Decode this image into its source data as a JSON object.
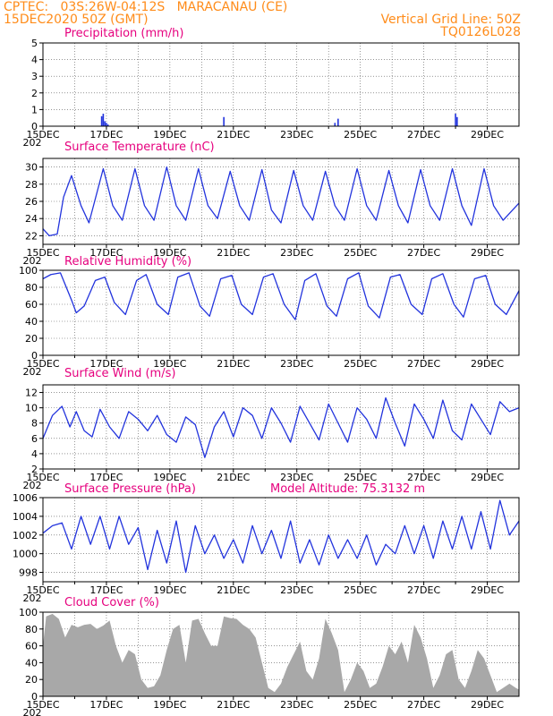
{
  "header": {
    "line1_left": "CPTEC:   03S:26W-04:12S   MARACANAU (CE)",
    "line2_left": "15DEC2020 50Z (GMT)",
    "line1_right": "Vertical Grid Line: 50Z",
    "line2_right": "TQ0126L028"
  },
  "colors": {
    "header": "#ff8c1a",
    "title": "#e6007e",
    "line": "#2233dd",
    "cloud": "#a8a8a8",
    "grid": "#555555"
  },
  "x_axis": {
    "tick_labels": [
      "15DEC",
      "17DEC",
      "19DEC",
      "21DEC",
      "23DEC",
      "25DEC",
      "27DEC",
      "29DEC"
    ],
    "year_fragment": "202"
  },
  "chart_data": [
    {
      "type": "bar",
      "title": "Precipitation (mm/h)",
      "ylim": [
        0,
        5
      ],
      "y_ticks": [
        "0",
        "1",
        "2",
        "3",
        "4",
        "5"
      ],
      "x": [
        1.85,
        1.9,
        1.95,
        2.0,
        2.05,
        5.7,
        9.2,
        9.3,
        13.0,
        13.05
      ],
      "values": [
        0.6,
        0.75,
        0.3,
        0.2,
        0.1,
        0.55,
        0.2,
        0.45,
        0.75,
        0.55
      ]
    },
    {
      "type": "line",
      "title": "Surface Temperature (nC)",
      "ylim": [
        21,
        31
      ],
      "y_ticks": [
        "22",
        "24",
        "26",
        "28",
        "30"
      ],
      "x": [
        0.0,
        0.2,
        0.45,
        0.65,
        0.9,
        1.2,
        1.45,
        1.9,
        2.2,
        2.5,
        2.9,
        3.2,
        3.5,
        3.9,
        4.2,
        4.5,
        4.9,
        5.2,
        5.5,
        5.9,
        6.2,
        6.5,
        6.9,
        7.2,
        7.5,
        7.9,
        8.2,
        8.5,
        8.9,
        9.2,
        9.5,
        9.9,
        10.2,
        10.5,
        10.9,
        11.2,
        11.5,
        11.9,
        12.2,
        12.5,
        12.9,
        13.2,
        13.5,
        13.9,
        14.2,
        14.5,
        15.0
      ],
      "values": [
        22.8,
        22.0,
        22.2,
        26.5,
        29.0,
        25.5,
        23.5,
        29.8,
        25.5,
        23.8,
        29.8,
        25.5,
        23.8,
        30.0,
        25.5,
        23.8,
        29.8,
        25.5,
        24.0,
        29.5,
        25.5,
        23.8,
        29.7,
        25.0,
        23.5,
        29.6,
        25.5,
        23.8,
        29.5,
        25.5,
        23.8,
        29.8,
        25.5,
        23.8,
        29.6,
        25.5,
        23.5,
        29.7,
        25.5,
        23.8,
        29.8,
        25.5,
        23.2,
        29.8,
        25.5,
        23.8,
        25.8
      ]
    },
    {
      "type": "line",
      "title": "Relative Humidity (%)",
      "ylim": [
        0,
        100
      ],
      "y_ticks": [
        "0",
        "20",
        "40",
        "60",
        "80",
        "100"
      ],
      "x": [
        0.0,
        0.25,
        0.55,
        0.9,
        1.05,
        1.3,
        1.65,
        1.95,
        2.25,
        2.6,
        2.95,
        3.25,
        3.6,
        3.95,
        4.25,
        4.6,
        4.95,
        5.25,
        5.6,
        5.95,
        6.25,
        6.6,
        6.95,
        7.25,
        7.6,
        7.95,
        8.25,
        8.6,
        8.95,
        9.25,
        9.6,
        9.95,
        10.25,
        10.6,
        10.95,
        11.25,
        11.6,
        11.95,
        12.25,
        12.6,
        12.95,
        13.25,
        13.6,
        13.95,
        14.25,
        14.6,
        15.0
      ],
      "values": [
        90,
        95,
        97,
        65,
        50,
        58,
        88,
        92,
        62,
        48,
        88,
        95,
        60,
        48,
        92,
        97,
        58,
        46,
        90,
        94,
        60,
        48,
        92,
        96,
        60,
        42,
        88,
        96,
        58,
        46,
        90,
        97,
        58,
        44,
        92,
        95,
        60,
        48,
        90,
        96,
        60,
        45,
        90,
        94,
        60,
        48,
        76
      ]
    },
    {
      "type": "line",
      "title": "Surface Wind (m/s)",
      "ylim": [
        2,
        13
      ],
      "y_ticks": [
        "2",
        "4",
        "6",
        "8",
        "10",
        "12"
      ],
      "x": [
        0.0,
        0.3,
        0.6,
        0.85,
        1.05,
        1.3,
        1.55,
        1.8,
        2.1,
        2.4,
        2.7,
        3.0,
        3.3,
        3.6,
        3.9,
        4.2,
        4.5,
        4.8,
        5.1,
        5.4,
        5.7,
        6.0,
        6.3,
        6.6,
        6.9,
        7.2,
        7.5,
        7.8,
        8.1,
        8.4,
        8.7,
        9.0,
        9.3,
        9.6,
        9.9,
        10.2,
        10.5,
        10.8,
        11.1,
        11.4,
        11.7,
        12.0,
        12.3,
        12.6,
        12.9,
        13.2,
        13.5,
        13.8,
        14.1,
        14.4,
        14.7,
        15.0
      ],
      "values": [
        6.0,
        9.0,
        10.2,
        7.5,
        9.5,
        7.0,
        6.2,
        9.8,
        7.5,
        6.0,
        9.5,
        8.5,
        7.0,
        9.0,
        6.5,
        5.5,
        8.8,
        7.8,
        3.5,
        7.5,
        9.5,
        6.2,
        10.0,
        9.0,
        6.0,
        10.0,
        8.0,
        5.5,
        10.2,
        8.0,
        5.8,
        10.5,
        8.0,
        5.5,
        10.0,
        8.5,
        6.0,
        11.3,
        8.0,
        5.0,
        10.5,
        8.5,
        6.0,
        11.0,
        7.0,
        5.8,
        10.5,
        8.5,
        6.5,
        10.8,
        9.5,
        10.0
      ]
    },
    {
      "type": "line",
      "title": "Surface Pressure (hPa)",
      "annotation": "Model Altitude: 75.3132 m",
      "ylim": [
        997,
        1006
      ],
      "y_ticks": [
        "998",
        "1000",
        "1002",
        "1004",
        "1006"
      ],
      "x": [
        0.0,
        0.3,
        0.6,
        0.9,
        1.2,
        1.5,
        1.8,
        2.1,
        2.4,
        2.7,
        3.0,
        3.3,
        3.6,
        3.9,
        4.2,
        4.5,
        4.8,
        5.1,
        5.4,
        5.7,
        6.0,
        6.3,
        6.6,
        6.9,
        7.2,
        7.5,
        7.8,
        8.1,
        8.4,
        8.7,
        9.0,
        9.3,
        9.6,
        9.9,
        10.2,
        10.5,
        10.8,
        11.1,
        11.4,
        11.7,
        12.0,
        12.3,
        12.6,
        12.9,
        13.2,
        13.5,
        13.8,
        14.1,
        14.4,
        14.7,
        15.0
      ],
      "values": [
        1002.2,
        1003.0,
        1003.3,
        1000.5,
        1004.0,
        1001.0,
        1004.0,
        1000.5,
        1004.0,
        1001.0,
        1002.8,
        998.3,
        1002.5,
        999.0,
        1003.5,
        998.0,
        1003.0,
        1000.0,
        1002.0,
        999.5,
        1001.5,
        999.0,
        1003.0,
        1000.0,
        1002.5,
        999.5,
        1003.5,
        999.0,
        1001.5,
        998.8,
        1002.0,
        999.5,
        1001.5,
        999.5,
        1002.0,
        998.8,
        1001.0,
        1000.0,
        1003.0,
        1000.0,
        1003.0,
        999.5,
        1003.5,
        1000.5,
        1004.0,
        1000.5,
        1004.5,
        1000.5,
        1005.7,
        1002.0,
        1003.5
      ]
    },
    {
      "type": "area",
      "title": "Cloud Cover (%)",
      "ylim": [
        0,
        100
      ],
      "y_ticks": [
        "0",
        "20",
        "40",
        "60",
        "80",
        "100"
      ],
      "x": [
        0.0,
        0.1,
        0.3,
        0.5,
        0.7,
        0.9,
        1.1,
        1.3,
        1.5,
        1.7,
        1.9,
        2.1,
        2.3,
        2.5,
        2.7,
        2.9,
        3.1,
        3.3,
        3.5,
        3.7,
        3.9,
        4.1,
        4.3,
        4.5,
        4.7,
        4.9,
        5.1,
        5.3,
        5.5,
        5.7,
        5.9,
        6.1,
        6.3,
        6.5,
        6.7,
        6.9,
        7.1,
        7.3,
        7.5,
        7.7,
        7.9,
        8.1,
        8.3,
        8.5,
        8.7,
        8.9,
        9.1,
        9.3,
        9.5,
        9.7,
        9.9,
        10.1,
        10.3,
        10.5,
        10.7,
        10.9,
        11.1,
        11.3,
        11.5,
        11.7,
        11.9,
        12.1,
        12.3,
        12.5,
        12.7,
        12.9,
        13.1,
        13.3,
        13.5,
        13.7,
        13.9,
        14.1,
        14.3,
        14.5,
        14.7,
        14.9,
        15.0
      ],
      "values": [
        60,
        95,
        98,
        92,
        70,
        85,
        82,
        85,
        86,
        80,
        84,
        90,
        60,
        40,
        55,
        50,
        20,
        10,
        12,
        25,
        55,
        80,
        85,
        40,
        90,
        92,
        75,
        60,
        60,
        95,
        93,
        92,
        85,
        80,
        70,
        40,
        10,
        5,
        15,
        35,
        50,
        65,
        30,
        20,
        45,
        92,
        75,
        55,
        5,
        20,
        40,
        30,
        10,
        15,
        35,
        60,
        50,
        65,
        40,
        85,
        70,
        45,
        10,
        25,
        50,
        55,
        20,
        10,
        30,
        55,
        45,
        25,
        5,
        10,
        15,
        10,
        8
      ]
    }
  ]
}
